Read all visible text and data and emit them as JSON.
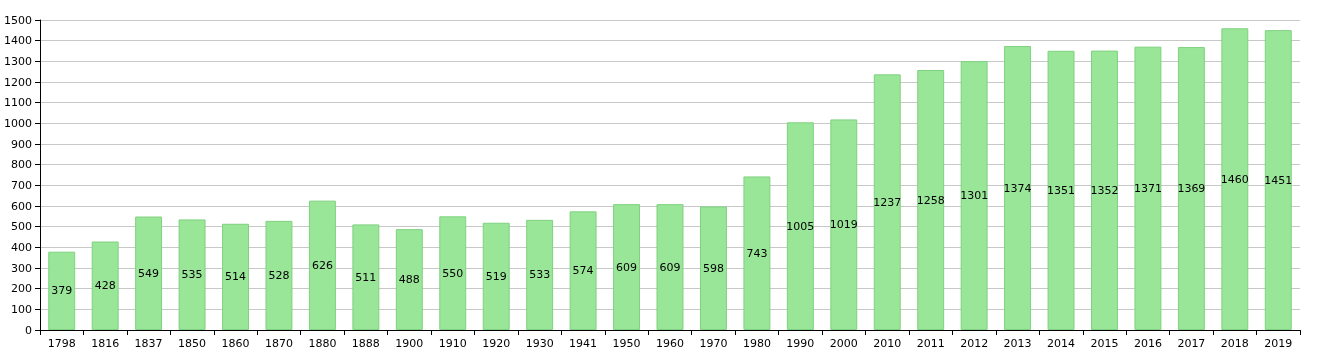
{
  "chart_data": {
    "type": "bar",
    "categories": [
      "1798",
      "1816",
      "1837",
      "1850",
      "1860",
      "1870",
      "1880",
      "1888",
      "1900",
      "1910",
      "1920",
      "1930",
      "1941",
      "1950",
      "1960",
      "1970",
      "1980",
      "1990",
      "2000",
      "2010",
      "2011",
      "2012",
      "2013",
      "2014",
      "2015",
      "2016",
      "2017",
      "2018",
      "2019"
    ],
    "values": [
      379,
      428,
      549,
      535,
      514,
      528,
      626,
      511,
      488,
      550,
      519,
      533,
      574,
      609,
      609,
      598,
      743,
      1005,
      1019,
      1237,
      1258,
      1301,
      1374,
      1351,
      1352,
      1371,
      1369,
      1460,
      1451
    ],
    "color": "#99e699",
    "ylim": [
      0,
      1500
    ],
    "yticks": [
      0,
      100,
      200,
      300,
      400,
      500,
      600,
      700,
      800,
      900,
      1000,
      1100,
      1200,
      1300,
      1400,
      1500
    ],
    "grid": "y",
    "data_labels": true
  }
}
